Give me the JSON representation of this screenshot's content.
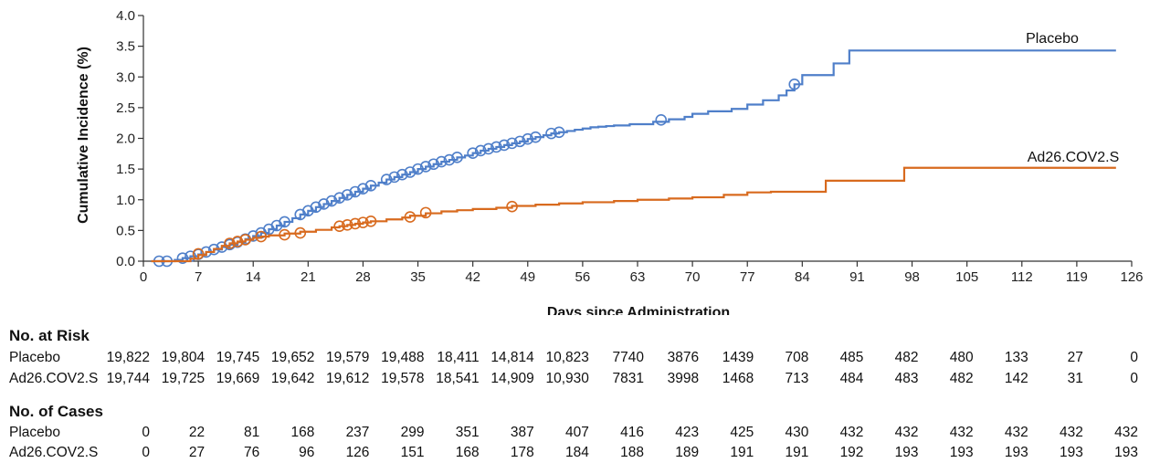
{
  "chart_data": {
    "type": "line",
    "step": true,
    "ylabel": "Cumulative Incidence (%)",
    "xlabel": "Days since Administration",
    "xlim": [
      0,
      126
    ],
    "ylim": [
      0,
      4.0
    ],
    "xticks": [
      0,
      7,
      14,
      21,
      28,
      35,
      42,
      49,
      56,
      63,
      70,
      77,
      84,
      91,
      98,
      105,
      112,
      119,
      126
    ],
    "yticks": [
      "0.0",
      "0.5",
      "1.0",
      "1.5",
      "2.0",
      "2.5",
      "3.0",
      "3.5",
      "4.0"
    ],
    "series": [
      {
        "name": "Placebo",
        "color": "#4f7fc9",
        "x": [
          1,
          2,
          3,
          4,
          5,
          6,
          7,
          8,
          9,
          10,
          11,
          12,
          13,
          14,
          15,
          16,
          17,
          18,
          19,
          20,
          21,
          22,
          23,
          24,
          25,
          26,
          27,
          28,
          29,
          30,
          31,
          32,
          33,
          34,
          35,
          36,
          37,
          38,
          39,
          40,
          41,
          42,
          43,
          44,
          45,
          46,
          47,
          48,
          49,
          50,
          51,
          52,
          53,
          54,
          55,
          56,
          57,
          58,
          59,
          60,
          62,
          65,
          67,
          69,
          70,
          72,
          75,
          77,
          79,
          81,
          82,
          83,
          84,
          88,
          89,
          90,
          124
        ],
        "y": [
          0,
          0,
          0,
          0.02,
          0.05,
          0.08,
          0.11,
          0.15,
          0.19,
          0.23,
          0.27,
          0.31,
          0.36,
          0.41,
          0.46,
          0.52,
          0.58,
          0.64,
          0.7,
          0.76,
          0.82,
          0.88,
          0.93,
          0.98,
          1.03,
          1.08,
          1.13,
          1.18,
          1.23,
          1.28,
          1.33,
          1.37,
          1.41,
          1.45,
          1.5,
          1.54,
          1.58,
          1.62,
          1.65,
          1.69,
          1.72,
          1.76,
          1.8,
          1.83,
          1.86,
          1.89,
          1.92,
          1.95,
          1.99,
          2.02,
          2.05,
          2.08,
          2.1,
          2.12,
          2.14,
          2.16,
          2.18,
          2.19,
          2.2,
          2.21,
          2.23,
          2.27,
          2.31,
          2.35,
          2.4,
          2.44,
          2.48,
          2.55,
          2.62,
          2.7,
          2.78,
          2.88,
          3.03,
          3.22,
          3.22,
          3.43,
          3.43
        ],
        "censor_x": [
          2,
          3,
          5,
          6,
          7,
          8,
          9,
          10,
          11,
          12,
          13,
          14,
          15,
          16,
          17,
          18,
          20,
          21,
          22,
          23,
          24,
          25,
          26,
          27,
          28,
          29,
          31,
          32,
          33,
          34,
          35,
          36,
          37,
          38,
          39,
          40,
          42,
          43,
          44,
          45,
          46,
          47,
          48,
          49,
          50,
          52,
          53,
          66,
          83
        ],
        "censor_y": [
          0,
          0,
          0.05,
          0.08,
          0.11,
          0.15,
          0.19,
          0.23,
          0.27,
          0.31,
          0.36,
          0.41,
          0.46,
          0.52,
          0.58,
          0.64,
          0.76,
          0.82,
          0.88,
          0.93,
          0.98,
          1.03,
          1.08,
          1.13,
          1.18,
          1.23,
          1.33,
          1.37,
          1.41,
          1.45,
          1.5,
          1.54,
          1.58,
          1.62,
          1.65,
          1.69,
          1.76,
          1.8,
          1.83,
          1.86,
          1.89,
          1.92,
          1.95,
          1.99,
          2.02,
          2.08,
          2.1,
          2.3,
          2.88
        ]
      },
      {
        "name": "Ad26.COV2.S",
        "color": "#d86a1e",
        "x": [
          1,
          5,
          6,
          7,
          8,
          9,
          10,
          11,
          12,
          13,
          14,
          15,
          16,
          18,
          20,
          22,
          24,
          25,
          26,
          27,
          28,
          29,
          31,
          33,
          34,
          36,
          38,
          40,
          42,
          45,
          47,
          50,
          53,
          56,
          60,
          63,
          67,
          70,
          74,
          77,
          80,
          84,
          87,
          95,
          97,
          124
        ],
        "y": [
          0,
          0,
          0.04,
          0.1,
          0.15,
          0.2,
          0.25,
          0.29,
          0.32,
          0.35,
          0.38,
          0.4,
          0.42,
          0.45,
          0.48,
          0.51,
          0.55,
          0.57,
          0.59,
          0.61,
          0.63,
          0.65,
          0.68,
          0.71,
          0.74,
          0.78,
          0.81,
          0.83,
          0.85,
          0.87,
          0.9,
          0.92,
          0.94,
          0.96,
          0.98,
          1.0,
          1.02,
          1.04,
          1.08,
          1.12,
          1.13,
          1.13,
          1.31,
          1.31,
          1.52,
          1.52
        ],
        "censor_x": [
          7,
          11,
          12,
          13,
          15,
          18,
          20,
          25,
          26,
          27,
          28,
          29,
          34,
          36,
          47
        ],
        "censor_y": [
          0.12,
          0.29,
          0.32,
          0.35,
          0.4,
          0.43,
          0.46,
          0.57,
          0.59,
          0.61,
          0.63,
          0.65,
          0.72,
          0.79,
          0.89
        ]
      }
    ]
  },
  "risk_table": {
    "title": "No. at Risk",
    "rows": [
      {
        "label": "Placebo",
        "values": [
          "19,822",
          "19,804",
          "19,745",
          "19,652",
          "19,579",
          "19,488",
          "18,411",
          "14,814",
          "10,823",
          "7740",
          "3876",
          "1439",
          "708",
          "485",
          "482",
          "480",
          "133",
          "27",
          "0"
        ]
      },
      {
        "label": "Ad26.COV2.S",
        "values": [
          "19,744",
          "19,725",
          "19,669",
          "19,642",
          "19,612",
          "19,578",
          "18,541",
          "14,909",
          "10,930",
          "7831",
          "3998",
          "1468",
          "713",
          "484",
          "483",
          "482",
          "142",
          "31",
          "0"
        ]
      }
    ]
  },
  "cases_table": {
    "title": "No. of Cases",
    "rows": [
      {
        "label": "Placebo",
        "values": [
          "0",
          "22",
          "81",
          "168",
          "237",
          "299",
          "351",
          "387",
          "407",
          "416",
          "423",
          "425",
          "430",
          "432",
          "432",
          "432",
          "432",
          "432",
          "432"
        ]
      },
      {
        "label": "Ad26.COV2.S",
        "values": [
          "0",
          "27",
          "76",
          "96",
          "126",
          "151",
          "168",
          "178",
          "184",
          "188",
          "189",
          "191",
          "191",
          "192",
          "193",
          "193",
          "193",
          "193",
          "193"
        ]
      }
    ]
  }
}
